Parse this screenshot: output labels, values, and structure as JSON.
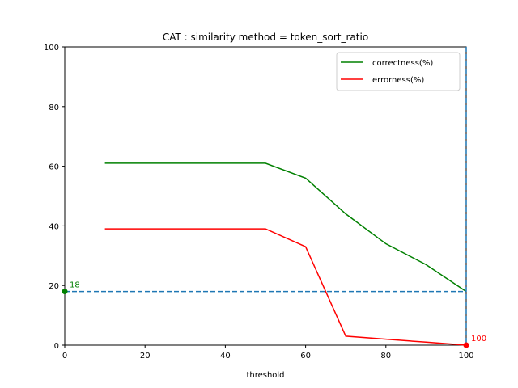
{
  "chart_data": {
    "type": "line",
    "title": "CAT : similarity method = token_sort_ratio",
    "xlabel": "threshold",
    "ylabel": "",
    "xlim": [
      0,
      100
    ],
    "ylim": [
      0,
      100
    ],
    "xticks": [
      0,
      20,
      40,
      60,
      80,
      100
    ],
    "yticks": [
      0,
      20,
      40,
      60,
      80,
      100
    ],
    "x": [
      10,
      20,
      30,
      40,
      50,
      60,
      70,
      80,
      90,
      100
    ],
    "series": [
      {
        "name": "correctness(%)",
        "color": "#008000",
        "values": [
          61,
          61,
          61,
          61,
          61,
          56,
          44,
          34,
          27,
          18
        ]
      },
      {
        "name": "errorness(%)",
        "color": "#ff0000",
        "values": [
          39,
          39,
          39,
          39,
          39,
          33,
          3,
          2,
          1,
          0
        ]
      }
    ],
    "reference_lines": [
      {
        "orientation": "horizontal",
        "value": 18,
        "style": "dashed",
        "color": "#1f77b4"
      },
      {
        "orientation": "vertical",
        "value": 100,
        "style": "dashed",
        "color": "#1f77b4"
      }
    ],
    "annotations": [
      {
        "text": "18",
        "x": 0,
        "y": 18,
        "color": "#008000"
      },
      {
        "text": "100",
        "x": 100,
        "y": 0,
        "color": "#ff0000"
      }
    ],
    "legend_position": "top-right",
    "grid": false
  }
}
